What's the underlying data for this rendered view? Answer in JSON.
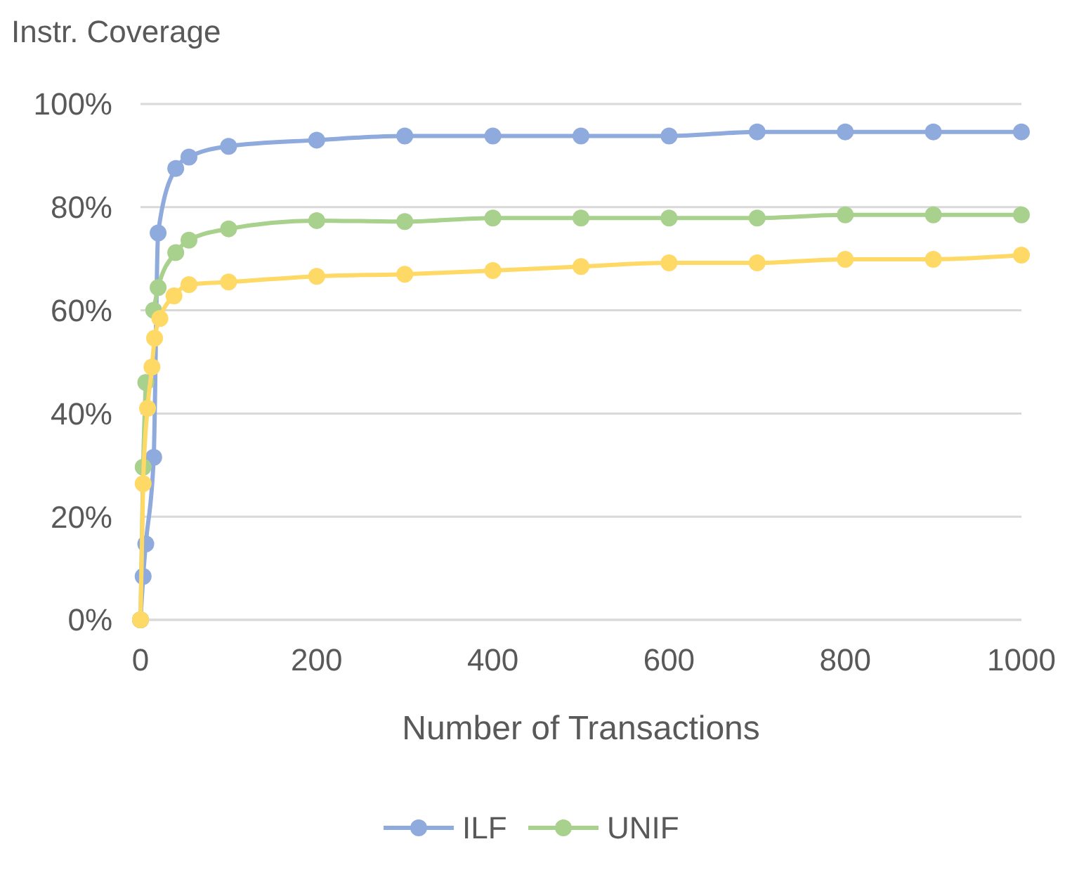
{
  "chart_data": {
    "type": "line",
    "xlabel": "Number of Transactions",
    "ylabel": "Instr. Coverage",
    "xlim": [
      0,
      1000
    ],
    "xticks": [
      0,
      200,
      400,
      600,
      800,
      1000
    ],
    "ylim": [
      0,
      100
    ],
    "yticks": [
      {
        "value": 0,
        "label": "0%"
      },
      {
        "value": 20,
        "label": "20%"
      },
      {
        "value": 40,
        "label": "40%"
      },
      {
        "value": 60,
        "label": "60%"
      },
      {
        "value": 80,
        "label": "80%"
      },
      {
        "value": 100,
        "label": "100%"
      }
    ],
    "grid": "y",
    "legend": "bottom",
    "marker": "circle",
    "line_style": "solid",
    "series": [
      {
        "name": "ILF",
        "color": "#8faadc",
        "x": [
          0,
          3,
          6,
          15,
          20,
          40,
          55,
          100,
          200,
          300,
          400,
          500,
          600,
          700,
          800,
          900,
          1000
        ],
        "values": [
          0,
          8.4,
          14.7,
          31.5,
          75,
          87.5,
          89.7,
          91.8,
          93,
          93.8,
          93.8,
          93.8,
          93.8,
          94.6,
          94.6,
          94.6,
          94.6
        ]
      },
      {
        "name": "UNIF",
        "color": "#a9d18e",
        "x": [
          0,
          3,
          6,
          13,
          15,
          20,
          40,
          55,
          100,
          200,
          300,
          400,
          500,
          600,
          700,
          800,
          900,
          1000
        ],
        "values": [
          0,
          29.6,
          46,
          null,
          60,
          64.4,
          71.2,
          73.6,
          75.8,
          77.4,
          77.2,
          77.9,
          77.9,
          77.9,
          77.9,
          78.5,
          78.5,
          78.5
        ]
      },
      {
        "color": "#ffd966",
        "x": [
          0,
          3,
          8,
          13,
          16,
          22,
          38,
          55,
          100,
          200,
          300,
          400,
          500,
          600,
          700,
          800,
          900,
          1000
        ],
        "values": [
          0,
          26.4,
          41,
          49,
          54.6,
          58.4,
          62.8,
          65,
          65.5,
          66.6,
          67,
          67.7,
          68.5,
          69.2,
          69.2,
          69.9,
          69.9,
          70.7
        ]
      }
    ]
  }
}
